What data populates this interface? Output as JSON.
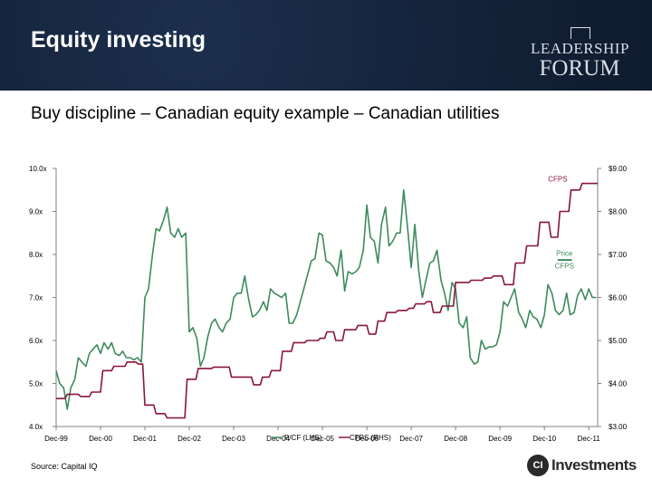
{
  "header": {
    "title": "Equity investing",
    "logo_top": "LEADERSHIP",
    "logo_bottom": "FORUM"
  },
  "subtitle": "Buy discipline – Canadian equity example – Canadian utilities",
  "source": "Source: Capital IQ",
  "brand": {
    "mark": "CI",
    "name": "Investments"
  },
  "colors": {
    "header_bg": "#14233a",
    "pcf": "#3d8a5b",
    "cfps": "#8a1538",
    "axis": "#808080"
  },
  "chart_data": {
    "type": "line",
    "x_labels": [
      "Dec-99",
      "Dec-00",
      "Dec-01",
      "Dec-02",
      "Dec-03",
      "Dec-04",
      "Dec-05",
      "Dec-06",
      "Dec-07",
      "Dec-08",
      "Dec-09",
      "Dec-10",
      "Dec-11"
    ],
    "y_left": {
      "ticks": [
        "4.0x",
        "5.0x",
        "6.0x",
        "7.0x",
        "8.0x",
        "9.0x",
        "10.0x"
      ],
      "min": 4.0,
      "max": 10.0
    },
    "y_right": {
      "ticks": [
        "$3.00",
        "$4.00",
        "$5.00",
        "$6.00",
        "$7.00",
        "$8.00",
        "$9.00"
      ],
      "min": 3.0,
      "max": 9.0
    },
    "grid": false,
    "annotations": [
      {
        "text": "CFPS",
        "year": 11.3,
        "value": 8.7,
        "axis": "right",
        "color": "#8a1538"
      },
      {
        "text": "Price",
        "year": 11.45,
        "value": 6.97,
        "axis": "right",
        "color": "#3d8a5b"
      },
      {
        "text": "CFPS",
        "year": 11.45,
        "value": 6.67,
        "axis": "right",
        "color": "#3d8a5b"
      }
    ],
    "legend": {
      "position": "bottom"
    },
    "series": [
      {
        "name": "P/CF (LHS)",
        "axis": "left",
        "color": "#3d8a5b",
        "points": [
          [
            0.0,
            5.3
          ],
          [
            0.08,
            5.0
          ],
          [
            0.17,
            4.9
          ],
          [
            0.25,
            4.4
          ],
          [
            0.33,
            4.9
          ],
          [
            0.42,
            5.1
          ],
          [
            0.5,
            5.6
          ],
          [
            0.58,
            5.5
          ],
          [
            0.67,
            5.4
          ],
          [
            0.75,
            5.7
          ],
          [
            0.83,
            5.8
          ],
          [
            0.92,
            5.9
          ],
          [
            1.0,
            5.7
          ],
          [
            1.08,
            5.95
          ],
          [
            1.17,
            5.8
          ],
          [
            1.25,
            5.95
          ],
          [
            1.33,
            5.7
          ],
          [
            1.42,
            5.65
          ],
          [
            1.5,
            5.75
          ],
          [
            1.58,
            5.6
          ],
          [
            1.67,
            5.6
          ],
          [
            1.75,
            5.55
          ],
          [
            1.83,
            5.6
          ],
          [
            1.92,
            5.5
          ],
          [
            2.0,
            7.0
          ],
          [
            2.08,
            7.2
          ],
          [
            2.17,
            8.0
          ],
          [
            2.25,
            8.6
          ],
          [
            2.33,
            8.55
          ],
          [
            2.42,
            8.8
          ],
          [
            2.5,
            9.1
          ],
          [
            2.58,
            8.5
          ],
          [
            2.67,
            8.4
          ],
          [
            2.75,
            8.6
          ],
          [
            2.83,
            8.4
          ],
          [
            2.92,
            8.5
          ],
          [
            3.0,
            6.2
          ],
          [
            3.08,
            6.3
          ],
          [
            3.17,
            6.05
          ],
          [
            3.25,
            5.4
          ],
          [
            3.33,
            5.6
          ],
          [
            3.42,
            6.1
          ],
          [
            3.5,
            6.4
          ],
          [
            3.58,
            6.5
          ],
          [
            3.67,
            6.3
          ],
          [
            3.75,
            6.2
          ],
          [
            3.83,
            6.4
          ],
          [
            3.92,
            6.5
          ],
          [
            4.0,
            7.0
          ],
          [
            4.08,
            7.1
          ],
          [
            4.17,
            7.1
          ],
          [
            4.25,
            7.5
          ],
          [
            4.33,
            7.0
          ],
          [
            4.42,
            6.55
          ],
          [
            4.5,
            6.6
          ],
          [
            4.58,
            6.7
          ],
          [
            4.67,
            6.9
          ],
          [
            4.75,
            6.7
          ],
          [
            4.83,
            7.2
          ],
          [
            4.92,
            7.1
          ],
          [
            5.0,
            7.05
          ],
          [
            5.08,
            7.0
          ],
          [
            5.17,
            7.1
          ],
          [
            5.25,
            6.4
          ],
          [
            5.33,
            6.4
          ],
          [
            5.42,
            6.6
          ],
          [
            5.5,
            6.9
          ],
          [
            5.58,
            7.2
          ],
          [
            5.67,
            7.55
          ],
          [
            5.75,
            7.85
          ],
          [
            5.83,
            7.9
          ],
          [
            5.92,
            8.5
          ],
          [
            6.0,
            8.45
          ],
          [
            6.08,
            7.85
          ],
          [
            6.17,
            7.8
          ],
          [
            6.25,
            7.7
          ],
          [
            6.33,
            7.5
          ],
          [
            6.42,
            8.1
          ],
          [
            6.5,
            7.15
          ],
          [
            6.58,
            7.6
          ],
          [
            6.67,
            7.55
          ],
          [
            6.75,
            7.6
          ],
          [
            6.83,
            7.7
          ],
          [
            6.92,
            8.1
          ],
          [
            7.0,
            9.15
          ],
          [
            7.08,
            8.4
          ],
          [
            7.17,
            8.3
          ],
          [
            7.25,
            7.8
          ],
          [
            7.33,
            8.7
          ],
          [
            7.42,
            9.1
          ],
          [
            7.5,
            8.2
          ],
          [
            7.58,
            8.3
          ],
          [
            7.67,
            8.5
          ],
          [
            7.75,
            8.5
          ],
          [
            7.83,
            9.5
          ],
          [
            7.92,
            8.6
          ],
          [
            8.0,
            7.7
          ],
          [
            8.08,
            8.7
          ],
          [
            8.17,
            7.6
          ],
          [
            8.25,
            7.0
          ],
          [
            8.33,
            7.4
          ],
          [
            8.42,
            7.8
          ],
          [
            8.5,
            7.85
          ],
          [
            8.58,
            8.1
          ],
          [
            8.67,
            7.4
          ],
          [
            8.75,
            7.1
          ],
          [
            8.83,
            6.7
          ],
          [
            8.92,
            7.35
          ],
          [
            9.0,
            7.2
          ],
          [
            9.08,
            6.4
          ],
          [
            9.17,
            6.3
          ],
          [
            9.25,
            6.55
          ],
          [
            9.33,
            5.6
          ],
          [
            9.42,
            5.45
          ],
          [
            9.5,
            5.5
          ],
          [
            9.58,
            6.0
          ],
          [
            9.67,
            5.8
          ],
          [
            9.75,
            5.85
          ],
          [
            9.83,
            5.85
          ],
          [
            9.92,
            5.9
          ],
          [
            10.0,
            6.2
          ],
          [
            10.08,
            6.9
          ],
          [
            10.17,
            6.8
          ],
          [
            10.25,
            7.0
          ],
          [
            10.33,
            7.2
          ],
          [
            10.42,
            6.65
          ],
          [
            10.5,
            6.5
          ],
          [
            10.58,
            6.3
          ],
          [
            10.67,
            6.7
          ],
          [
            10.75,
            6.55
          ],
          [
            10.83,
            6.5
          ],
          [
            10.92,
            6.3
          ],
          [
            11.0,
            6.6
          ],
          [
            11.08,
            7.3
          ],
          [
            11.17,
            7.1
          ],
          [
            11.25,
            6.7
          ],
          [
            11.33,
            6.6
          ],
          [
            11.42,
            6.7
          ],
          [
            11.5,
            7.1
          ],
          [
            11.58,
            6.6
          ],
          [
            11.67,
            6.65
          ],
          [
            11.75,
            7.05
          ],
          [
            11.83,
            7.2
          ],
          [
            11.92,
            6.95
          ],
          [
            12.0,
            7.2
          ],
          [
            12.08,
            7.0
          ],
          [
            12.17,
            7.0
          ]
        ]
      },
      {
        "name": "CFPS (RHS)",
        "axis": "right",
        "color": "#8a1538",
        "points": [
          [
            0.0,
            3.65
          ],
          [
            0.2,
            3.65
          ],
          [
            0.25,
            3.75
          ],
          [
            0.5,
            3.75
          ],
          [
            0.55,
            3.7
          ],
          [
            0.75,
            3.7
          ],
          [
            0.8,
            3.8
          ],
          [
            1.0,
            3.8
          ],
          [
            1.05,
            4.3
          ],
          [
            1.25,
            4.3
          ],
          [
            1.3,
            4.4
          ],
          [
            1.55,
            4.4
          ],
          [
            1.6,
            4.5
          ],
          [
            1.8,
            4.5
          ],
          [
            1.85,
            4.45
          ],
          [
            1.95,
            4.45
          ],
          [
            2.0,
            3.5
          ],
          [
            2.2,
            3.5
          ],
          [
            2.25,
            3.3
          ],
          [
            2.45,
            3.3
          ],
          [
            2.5,
            3.2
          ],
          [
            2.9,
            3.2
          ],
          [
            2.95,
            4.1
          ],
          [
            3.15,
            4.1
          ],
          [
            3.2,
            4.35
          ],
          [
            3.5,
            4.35
          ],
          [
            3.55,
            4.38
          ],
          [
            3.9,
            4.38
          ],
          [
            3.95,
            4.15
          ],
          [
            4.4,
            4.15
          ],
          [
            4.45,
            3.97
          ],
          [
            4.6,
            3.97
          ],
          [
            4.65,
            4.15
          ],
          [
            4.8,
            4.15
          ],
          [
            4.85,
            4.3
          ],
          [
            5.05,
            4.3
          ],
          [
            5.1,
            4.75
          ],
          [
            5.3,
            4.75
          ],
          [
            5.35,
            4.95
          ],
          [
            5.6,
            4.95
          ],
          [
            5.65,
            5.0
          ],
          [
            5.9,
            5.0
          ],
          [
            5.95,
            5.05
          ],
          [
            6.05,
            5.05
          ],
          [
            6.1,
            5.2
          ],
          [
            6.25,
            5.2
          ],
          [
            6.3,
            5.0
          ],
          [
            6.45,
            5.0
          ],
          [
            6.5,
            5.25
          ],
          [
            6.75,
            5.25
          ],
          [
            6.8,
            5.35
          ],
          [
            7.0,
            5.35
          ],
          [
            7.05,
            5.15
          ],
          [
            7.2,
            5.15
          ],
          [
            7.25,
            5.45
          ],
          [
            7.4,
            5.45
          ],
          [
            7.45,
            5.65
          ],
          [
            7.65,
            5.65
          ],
          [
            7.7,
            5.7
          ],
          [
            7.9,
            5.7
          ],
          [
            7.95,
            5.75
          ],
          [
            8.05,
            5.75
          ],
          [
            8.1,
            5.85
          ],
          [
            8.3,
            5.85
          ],
          [
            8.35,
            5.9
          ],
          [
            8.45,
            5.9
          ],
          [
            8.5,
            5.65
          ],
          [
            8.65,
            5.65
          ],
          [
            8.7,
            5.8
          ],
          [
            8.95,
            5.8
          ],
          [
            9.0,
            6.35
          ],
          [
            9.3,
            6.35
          ],
          [
            9.35,
            6.4
          ],
          [
            9.6,
            6.4
          ],
          [
            9.65,
            6.45
          ],
          [
            9.8,
            6.45
          ],
          [
            9.85,
            6.5
          ],
          [
            10.05,
            6.5
          ],
          [
            10.1,
            6.3
          ],
          [
            10.3,
            6.3
          ],
          [
            10.35,
            6.8
          ],
          [
            10.55,
            6.8
          ],
          [
            10.6,
            7.2
          ],
          [
            10.85,
            7.2
          ],
          [
            10.9,
            7.75
          ],
          [
            11.1,
            7.75
          ],
          [
            11.15,
            7.4
          ],
          [
            11.3,
            7.4
          ],
          [
            11.35,
            8.0
          ],
          [
            11.55,
            8.0
          ],
          [
            11.6,
            8.5
          ],
          [
            11.8,
            8.5
          ],
          [
            11.85,
            8.65
          ],
          [
            12.2,
            8.65
          ]
        ]
      }
    ]
  }
}
